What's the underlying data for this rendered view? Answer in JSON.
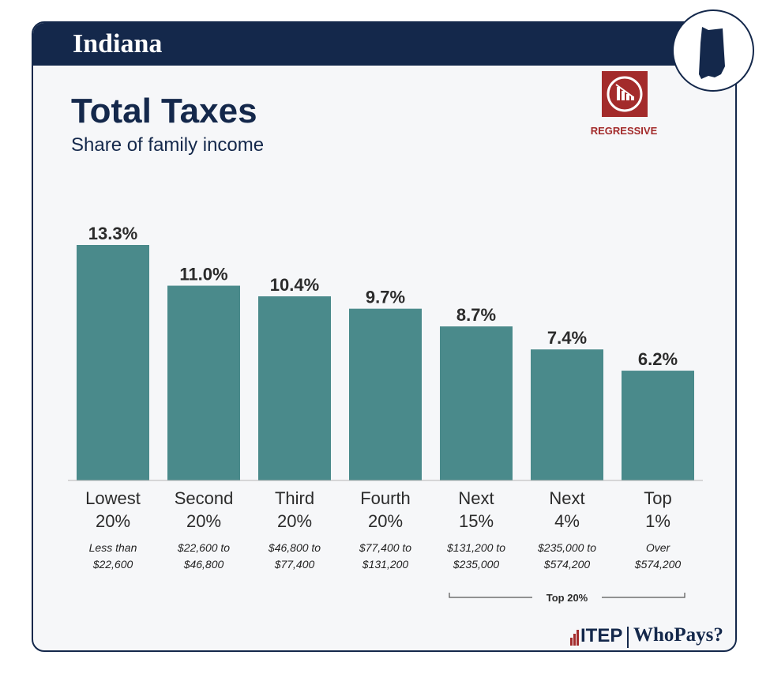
{
  "header": {
    "state": "Indiana"
  },
  "chart_title": "Total Taxes",
  "chart_subtitle": "Share of family income",
  "badge": {
    "label": "REGRESSIVE",
    "icon": "regressive-chart-icon",
    "color": "#a32b2b"
  },
  "footer": {
    "logo_itep": "ITEP",
    "logo_whopays": "WhoPays?"
  },
  "colors": {
    "navy": "#14284b",
    "bar": "#4a8a8b",
    "red": "#a32b2b"
  },
  "chart_data": {
    "type": "bar",
    "title": "Total Taxes",
    "subtitle": "Share of family income",
    "categories": [
      [
        "Lowest",
        "20%"
      ],
      [
        "Second",
        "20%"
      ],
      [
        "Third",
        "20%"
      ],
      [
        "Fourth",
        "20%"
      ],
      [
        "Next",
        "15%"
      ],
      [
        "Next",
        "4%"
      ],
      [
        "Top",
        "1%"
      ]
    ],
    "income_ranges": [
      [
        "Less than",
        "$22,600"
      ],
      [
        "$22,600 to",
        "$46,800"
      ],
      [
        "$46,800 to",
        "$77,400"
      ],
      [
        "$77,400 to",
        "$131,200"
      ],
      [
        "$131,200 to",
        "$235,000"
      ],
      [
        "$235,000 to",
        "$574,200"
      ],
      [
        "Over",
        "$574,200"
      ]
    ],
    "values": [
      13.3,
      11.0,
      10.4,
      9.7,
      8.7,
      7.4,
      6.2
    ],
    "value_labels": [
      "13.3%",
      "11.0%",
      "10.4%",
      "9.7%",
      "8.7%",
      "7.4%",
      "6.2%"
    ],
    "ylim": [
      0,
      13.3
    ],
    "grid": false,
    "bracket": {
      "label": "Top 20%",
      "from_index": 4,
      "to_index": 6
    }
  }
}
